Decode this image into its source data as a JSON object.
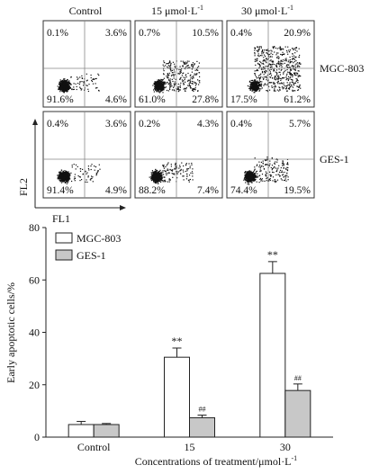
{
  "flow_panel": {
    "columns": [
      "Control",
      "15 μmol·L",
      "30 μmol·L"
    ],
    "column_superscript": "-1",
    "rows": [
      {
        "name": "MGC-803",
        "panels": [
          {
            "ul": "0.1%",
            "ur": "3.6%",
            "ll": "91.6%",
            "lr": "4.6%",
            "spread": 0.1
          },
          {
            "ul": "0.7%",
            "ur": "10.5%",
            "ll": "61.0%",
            "lr": "27.8%",
            "spread": 0.45
          },
          {
            "ul": "0.4%",
            "ur": "20.9%",
            "ll": "17.5%",
            "lr": "61.2%",
            "spread": 0.85
          }
        ]
      },
      {
        "name": "GES-1",
        "panels": [
          {
            "ul": "0.4%",
            "ur": "3.6%",
            "ll": "91.4%",
            "lr": "4.9%",
            "spread": 0.1
          },
          {
            "ul": "0.2%",
            "ur": "4.3%",
            "ll": "88.2%",
            "lr": "7.4%",
            "spread": 0.15
          },
          {
            "ul": "0.4%",
            "ur": "5.7%",
            "ll": "74.4%",
            "lr": "19.5%",
            "spread": 0.3
          }
        ]
      }
    ],
    "x_axis_label": "FL1",
    "y_axis_label": "FL2"
  },
  "chart_data": {
    "type": "bar",
    "categories": [
      "Control",
      "15",
      "30"
    ],
    "series": [
      {
        "name": "MGC-803",
        "values": [
          4.8,
          30.5,
          62.5
        ],
        "errors": [
          1.2,
          3.5,
          4.5
        ],
        "marks": [
          "",
          "**",
          "**"
        ],
        "color": "#ffffff"
      },
      {
        "name": "GES-1",
        "values": [
          4.8,
          7.4,
          17.8
        ],
        "errors": [
          0.4,
          1.0,
          2.5
        ],
        "marks": [
          "",
          "##",
          "##"
        ],
        "color": "#c8c8c8"
      }
    ],
    "xlabel": "Concentrations of treatment/μmol·L",
    "xlabel_superscript": "-1",
    "ylabel": "Early apoptotic cells/%",
    "ylim": [
      0,
      80
    ],
    "yticks": [
      0,
      20,
      40,
      60,
      80
    ],
    "legend_position": "top-left"
  }
}
